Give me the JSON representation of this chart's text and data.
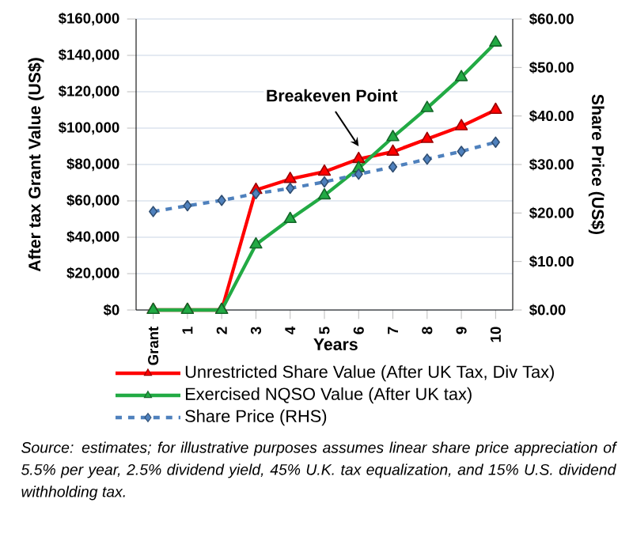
{
  "chart_data": {
    "type": "line",
    "xlabel": "Years",
    "ylabel": "After tax Grant Value (US$)",
    "y2label": "Share Price (US$)",
    "categories": [
      "Grant",
      "1",
      "2",
      "3",
      "4",
      "5",
      "6",
      "7",
      "8",
      "9",
      "10"
    ],
    "series": [
      {
        "name": "Unrestricted Share Value (After UK Tax, Div Tax)",
        "color": "#ff0000",
        "marker": "triangle",
        "line_style": "solid",
        "values": [
          0,
          0,
          0,
          66000,
          72000,
          76000,
          83000,
          87000,
          94000,
          101000,
          110000
        ]
      },
      {
        "name": "Exercised NQSO Value (After UK tax)",
        "color": "#22aa44",
        "marker": "triangle",
        "line_style": "solid",
        "values": [
          0,
          0,
          0,
          36000,
          50000,
          63000,
          78000,
          95000,
          111000,
          128000,
          147000
        ]
      },
      {
        "name": "Share Price (RHS)",
        "color": "#4f81bd",
        "marker": "diamond",
        "line_style": "dashed",
        "axis": "y2",
        "values": [
          20.3,
          21.5,
          22.6,
          24.0,
          25.1,
          26.4,
          28.0,
          29.5,
          31.1,
          32.7,
          34.6
        ]
      }
    ],
    "ylim": [
      0,
      160000
    ],
    "yticks": [
      {
        "value": 0,
        "label": "$0"
      },
      {
        "value": 20000,
        "label": "$20,000"
      },
      {
        "value": 40000,
        "label": "$40,000"
      },
      {
        "value": 60000,
        "label": "$60,000"
      },
      {
        "value": 80000,
        "label": "$80,000"
      },
      {
        "value": 100000,
        "label": "$100,000"
      },
      {
        "value": 120000,
        "label": "$120,000"
      },
      {
        "value": 140000,
        "label": "$140,000"
      },
      {
        "value": 160000,
        "label": "$160,000"
      }
    ],
    "y2lim": [
      0,
      60
    ],
    "y2ticks": [
      {
        "value": 0,
        "label": "$0.00"
      },
      {
        "value": 10,
        "label": "$10.00"
      },
      {
        "value": 20,
        "label": "$20.00"
      },
      {
        "value": 30,
        "label": "$30.00"
      },
      {
        "value": 40,
        "label": "$40.00"
      },
      {
        "value": 50,
        "label": "$50.00"
      },
      {
        "value": 60,
        "label": "$60.00"
      }
    ],
    "grid": "y",
    "legend": "bottom",
    "annotations": [
      {
        "text": "Breakeven Point",
        "x": "6",
        "y": 90000
      },
      "Source: estimates; for illustrative purposes assumes linear share price appreciation of 5.5% per year, 2.5% dividend yield, 45% U.K. tax equalization, and 15% U.S. dividend withholding tax."
    ]
  }
}
